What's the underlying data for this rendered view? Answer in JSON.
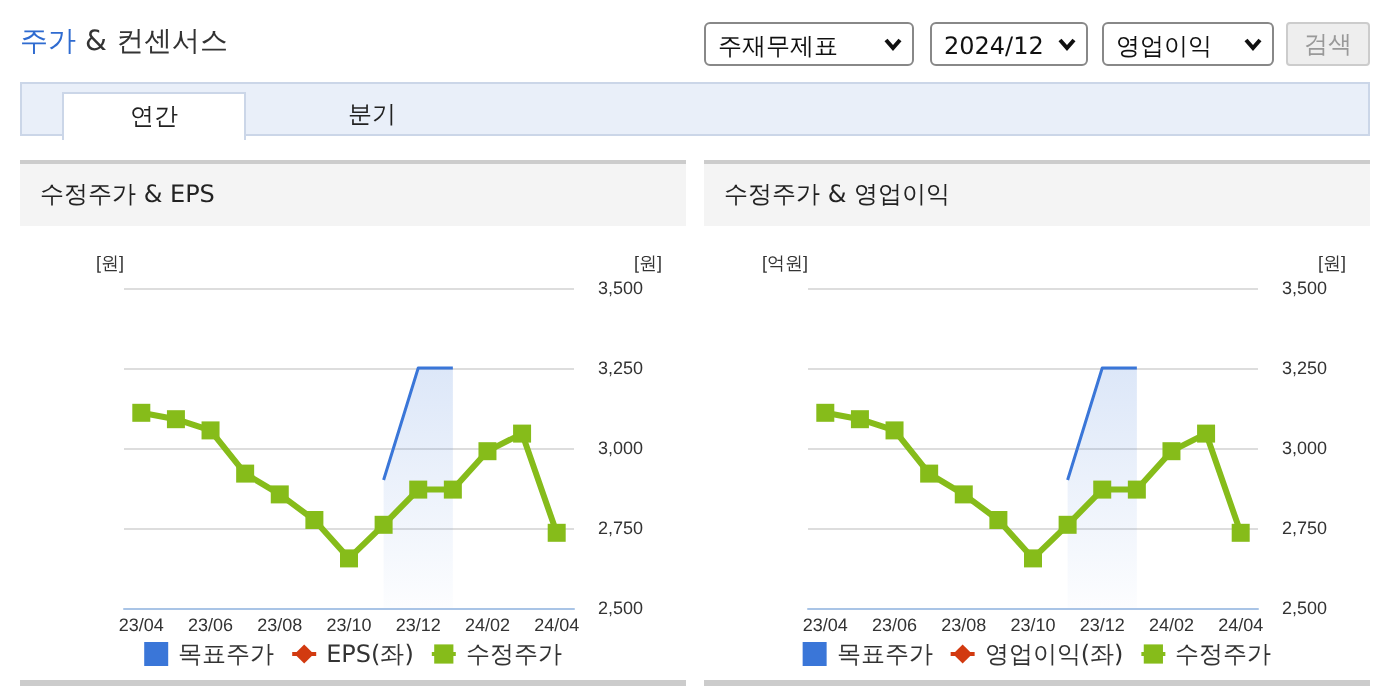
{
  "chart_data": [
    {
      "type": "line",
      "title": "수정주가 & EPS",
      "annotations": [
        "주가 & 컨센서스",
        "주재무제표",
        "2024/12",
        "영업이익",
        "검색",
        "연간",
        "분기"
      ],
      "categories": [
        "23/04",
        null,
        "23/06",
        null,
        "23/08",
        null,
        "23/10",
        null,
        "23/12",
        null,
        "24/02",
        null,
        "24/04"
      ],
      "ylabel": "[원]",
      "y2label": "[원]",
      "y2lim": [
        2500,
        3500
      ],
      "y2ticks": [
        {
          "value": 2500,
          "label": "2,500"
        },
        {
          "value": 2750,
          "label": "2,750"
        },
        {
          "value": 3000,
          "label": "3,000"
        },
        {
          "value": 3250,
          "label": "3,250"
        },
        {
          "value": 3500,
          "label": "3,500"
        }
      ],
      "grid": "y",
      "legend": "bottom",
      "series": [
        {
          "name": "목표주가",
          "type": "area",
          "color": "#3a76d8",
          "axis": "y2",
          "marker": "none",
          "values": [
            null,
            null,
            null,
            null,
            null,
            null,
            null,
            2900,
            3250,
            3250,
            null,
            null,
            null
          ]
        },
        {
          "name": "EPS(좌)",
          "color": "#d23a10",
          "axis": "y",
          "marker": "diamond",
          "values": [
            null,
            null,
            null,
            null,
            null,
            null,
            null,
            null,
            null,
            null,
            null,
            null,
            null
          ]
        },
        {
          "name": "수정주가",
          "type": "line",
          "color": "#86bc1a",
          "axis": "y2",
          "marker": "square",
          "values": [
            3110,
            3090,
            3055,
            2920,
            2855,
            2775,
            2655,
            2760,
            2870,
            2870,
            2990,
            3045,
            2735
          ]
        }
      ]
    },
    {
      "type": "line",
      "title": "수정주가 & 영업이익",
      "categories": [
        "23/04",
        null,
        "23/06",
        null,
        "23/08",
        null,
        "23/10",
        null,
        "23/12",
        null,
        "24/02",
        null,
        "24/04"
      ],
      "ylabel": "[억원]",
      "y2label": "[원]",
      "y2lim": [
        2500,
        3500
      ],
      "y2ticks": [
        {
          "value": 2500,
          "label": "2,500"
        },
        {
          "value": 2750,
          "label": "2,750"
        },
        {
          "value": 3000,
          "label": "3,000"
        },
        {
          "value": 3250,
          "label": "3,250"
        },
        {
          "value": 3500,
          "label": "3,500"
        }
      ],
      "grid": "y",
      "legend": "bottom",
      "series": [
        {
          "name": "목표주가",
          "type": "area",
          "color": "#3a76d8",
          "axis": "y2",
          "marker": "none",
          "values": [
            null,
            null,
            null,
            null,
            null,
            null,
            null,
            2900,
            3250,
            3250,
            null,
            null,
            null
          ]
        },
        {
          "name": "영업이익(좌)",
          "color": "#d23a10",
          "axis": "y",
          "marker": "diamond",
          "values": [
            null,
            null,
            null,
            null,
            null,
            null,
            null,
            null,
            null,
            null,
            null,
            null,
            null
          ]
        },
        {
          "name": "수정주가",
          "type": "line",
          "color": "#86bc1a",
          "axis": "y2",
          "marker": "square",
          "values": [
            3110,
            3090,
            3055,
            2920,
            2855,
            2775,
            2655,
            2760,
            2870,
            2870,
            2990,
            3045,
            2735
          ]
        }
      ]
    }
  ]
}
